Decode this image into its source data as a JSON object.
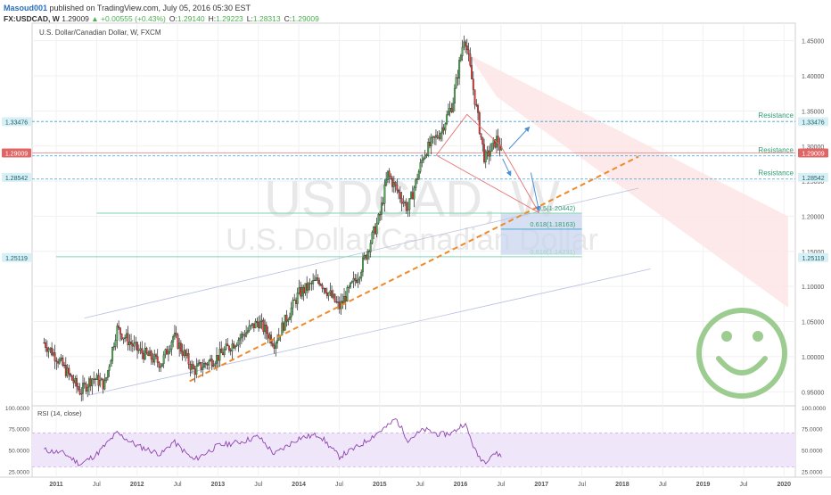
{
  "header": {
    "author": "Masoud001",
    "published_text": " published on TradingView.com, July 05, 2016 05:30 EST",
    "symbol": "FX:USDCAD, W",
    "last": "1.29009",
    "change": "+0.00555 (+0.43%)",
    "open_label": "O:",
    "open": "1.29140",
    "high_label": "H:",
    "high": "1.29223",
    "low_label": "L:",
    "low": "1.28313",
    "close_label": "C:",
    "close": "1.29009"
  },
  "chart_title": "U.S. Dollar/Canadian Dollar, W, FXCM",
  "watermark": {
    "symbol": "USDCAD, W",
    "name": "U.S. Dollar/Canadian Dollar"
  },
  "colors": {
    "up": "#4caf50",
    "down": "#e53935",
    "candle": "#222222",
    "trendline": "#ef8a2a",
    "resistance": "#3aa1d6",
    "fib": "#26a69a",
    "rsi_line": "#8e44ad",
    "rsi_fill": "#efe6fa",
    "smiley": "#9ccc8f",
    "price_tag": "#e06666",
    "level_tag": "#d6f0f5",
    "blue_zone": "#c9d6ee"
  },
  "chart_data": [
    {
      "type": "candlestick",
      "title": "U.S. Dollar/Canadian Dollar, W, FXCM",
      "x_tick_labels": [
        "2011",
        "Jul",
        "2012",
        "Jul",
        "2013",
        "Jul",
        "2014",
        "Jul",
        "2015",
        "Jul",
        "2016",
        "Jul",
        "2017",
        "Jul",
        "2018",
        "Jul",
        "2019",
        "Jul",
        "2020"
      ],
      "y_tick_labels": [
        "0.95000",
        "1.00000",
        "1.05000",
        "1.10000",
        "1.15000",
        "1.20000",
        "1.25000",
        "1.30000",
        "1.35000",
        "1.40000",
        "1.45000"
      ],
      "ylim": [
        0.93,
        1.475
      ],
      "price_path": [
        {
          "t": 2010.85,
          "v": 1.02
        },
        {
          "t": 2011.0,
          "v": 1.0
        },
        {
          "t": 2011.3,
          "v": 0.95
        },
        {
          "t": 2011.45,
          "v": 0.97
        },
        {
          "t": 2011.6,
          "v": 0.96
        },
        {
          "t": 2011.75,
          "v": 1.04
        },
        {
          "t": 2012.0,
          "v": 1.01
        },
        {
          "t": 2012.3,
          "v": 0.99
        },
        {
          "t": 2012.45,
          "v": 1.03
        },
        {
          "t": 2012.7,
          "v": 0.98
        },
        {
          "t": 2013.0,
          "v": 1.0
        },
        {
          "t": 2013.3,
          "v": 1.03
        },
        {
          "t": 2013.5,
          "v": 1.05
        },
        {
          "t": 2013.7,
          "v": 1.02
        },
        {
          "t": 2014.0,
          "v": 1.09
        },
        {
          "t": 2014.25,
          "v": 1.11
        },
        {
          "t": 2014.5,
          "v": 1.07
        },
        {
          "t": 2014.75,
          "v": 1.12
        },
        {
          "t": 2015.0,
          "v": 1.2
        },
        {
          "t": 2015.1,
          "v": 1.26
        },
        {
          "t": 2015.35,
          "v": 1.21
        },
        {
          "t": 2015.55,
          "v": 1.29
        },
        {
          "t": 2015.75,
          "v": 1.32
        },
        {
          "t": 2015.9,
          "v": 1.36
        },
        {
          "t": 2016.05,
          "v": 1.46
        },
        {
          "t": 2016.2,
          "v": 1.35
        },
        {
          "t": 2016.3,
          "v": 1.28
        },
        {
          "t": 2016.45,
          "v": 1.31
        },
        {
          "t": 2016.51,
          "v": 1.29
        }
      ],
      "current_price": 1.29009,
      "price_tags": [
        {
          "label": "1.33476",
          "value": 1.33476
        },
        {
          "label": "1.29009",
          "value": 1.29009
        },
        {
          "label": "1.28542",
          "value": 1.25542
        },
        {
          "label": "1.25119",
          "value": 1.14119
        }
      ],
      "resistance_levels": [
        {
          "label": "Resistance",
          "value": 1.335
        },
        {
          "label": "Resistance",
          "value": 1.286
        },
        {
          "label": "Resistance",
          "value": 1.253
        }
      ],
      "fib_levels": [
        {
          "label": "0.5(1.20442)",
          "value": 1.20442
        },
        {
          "label": "0.618(1.18163)",
          "value": 1.18163
        },
        {
          "label": "0.618(1.14231)",
          "value": 1.14231
        }
      ],
      "trendline": [
        {
          "t": 2012.65,
          "v": 0.965
        },
        {
          "t": 2018.2,
          "v": 1.285
        }
      ],
      "channel_upper": [
        {
          "t": 2011.35,
          "v": 1.055
        },
        {
          "t": 2018.2,
          "v": 1.24
        }
      ],
      "channel_lower": [
        {
          "t": 2011.4,
          "v": 0.945
        },
        {
          "t": 2018.35,
          "v": 1.125
        }
      ],
      "target_zone": {
        "t0": 2016.5,
        "t1": 2017.5,
        "v0": 1.145,
        "v1": 1.205
      }
    },
    {
      "type": "line",
      "title": "RSI (14, close)",
      "y_tick_labels": [
        "25.0000",
        "50.0000",
        "75.0000",
        "100.0000"
      ],
      "ylim": [
        18,
        102
      ],
      "band": [
        30,
        70
      ],
      "rsi_path": [
        {
          "t": 2010.85,
          "v": 50
        },
        {
          "t": 2011.1,
          "v": 46
        },
        {
          "t": 2011.3,
          "v": 33
        },
        {
          "t": 2011.5,
          "v": 45
        },
        {
          "t": 2011.75,
          "v": 70
        },
        {
          "t": 2012.0,
          "v": 55
        },
        {
          "t": 2012.3,
          "v": 45
        },
        {
          "t": 2012.45,
          "v": 60
        },
        {
          "t": 2012.7,
          "v": 38
        },
        {
          "t": 2013.0,
          "v": 55
        },
        {
          "t": 2013.3,
          "v": 60
        },
        {
          "t": 2013.5,
          "v": 66
        },
        {
          "t": 2013.7,
          "v": 45
        },
        {
          "t": 2014.0,
          "v": 64
        },
        {
          "t": 2014.25,
          "v": 68
        },
        {
          "t": 2014.5,
          "v": 42
        },
        {
          "t": 2014.75,
          "v": 55
        },
        {
          "t": 2015.0,
          "v": 72
        },
        {
          "t": 2015.1,
          "v": 78
        },
        {
          "t": 2015.2,
          "v": 87
        },
        {
          "t": 2015.35,
          "v": 62
        },
        {
          "t": 2015.55,
          "v": 74
        },
        {
          "t": 2015.75,
          "v": 68
        },
        {
          "t": 2015.9,
          "v": 70
        },
        {
          "t": 2016.05,
          "v": 82
        },
        {
          "t": 2016.2,
          "v": 45
        },
        {
          "t": 2016.3,
          "v": 36
        },
        {
          "t": 2016.4,
          "v": 46
        },
        {
          "t": 2016.51,
          "v": 44
        }
      ]
    }
  ]
}
